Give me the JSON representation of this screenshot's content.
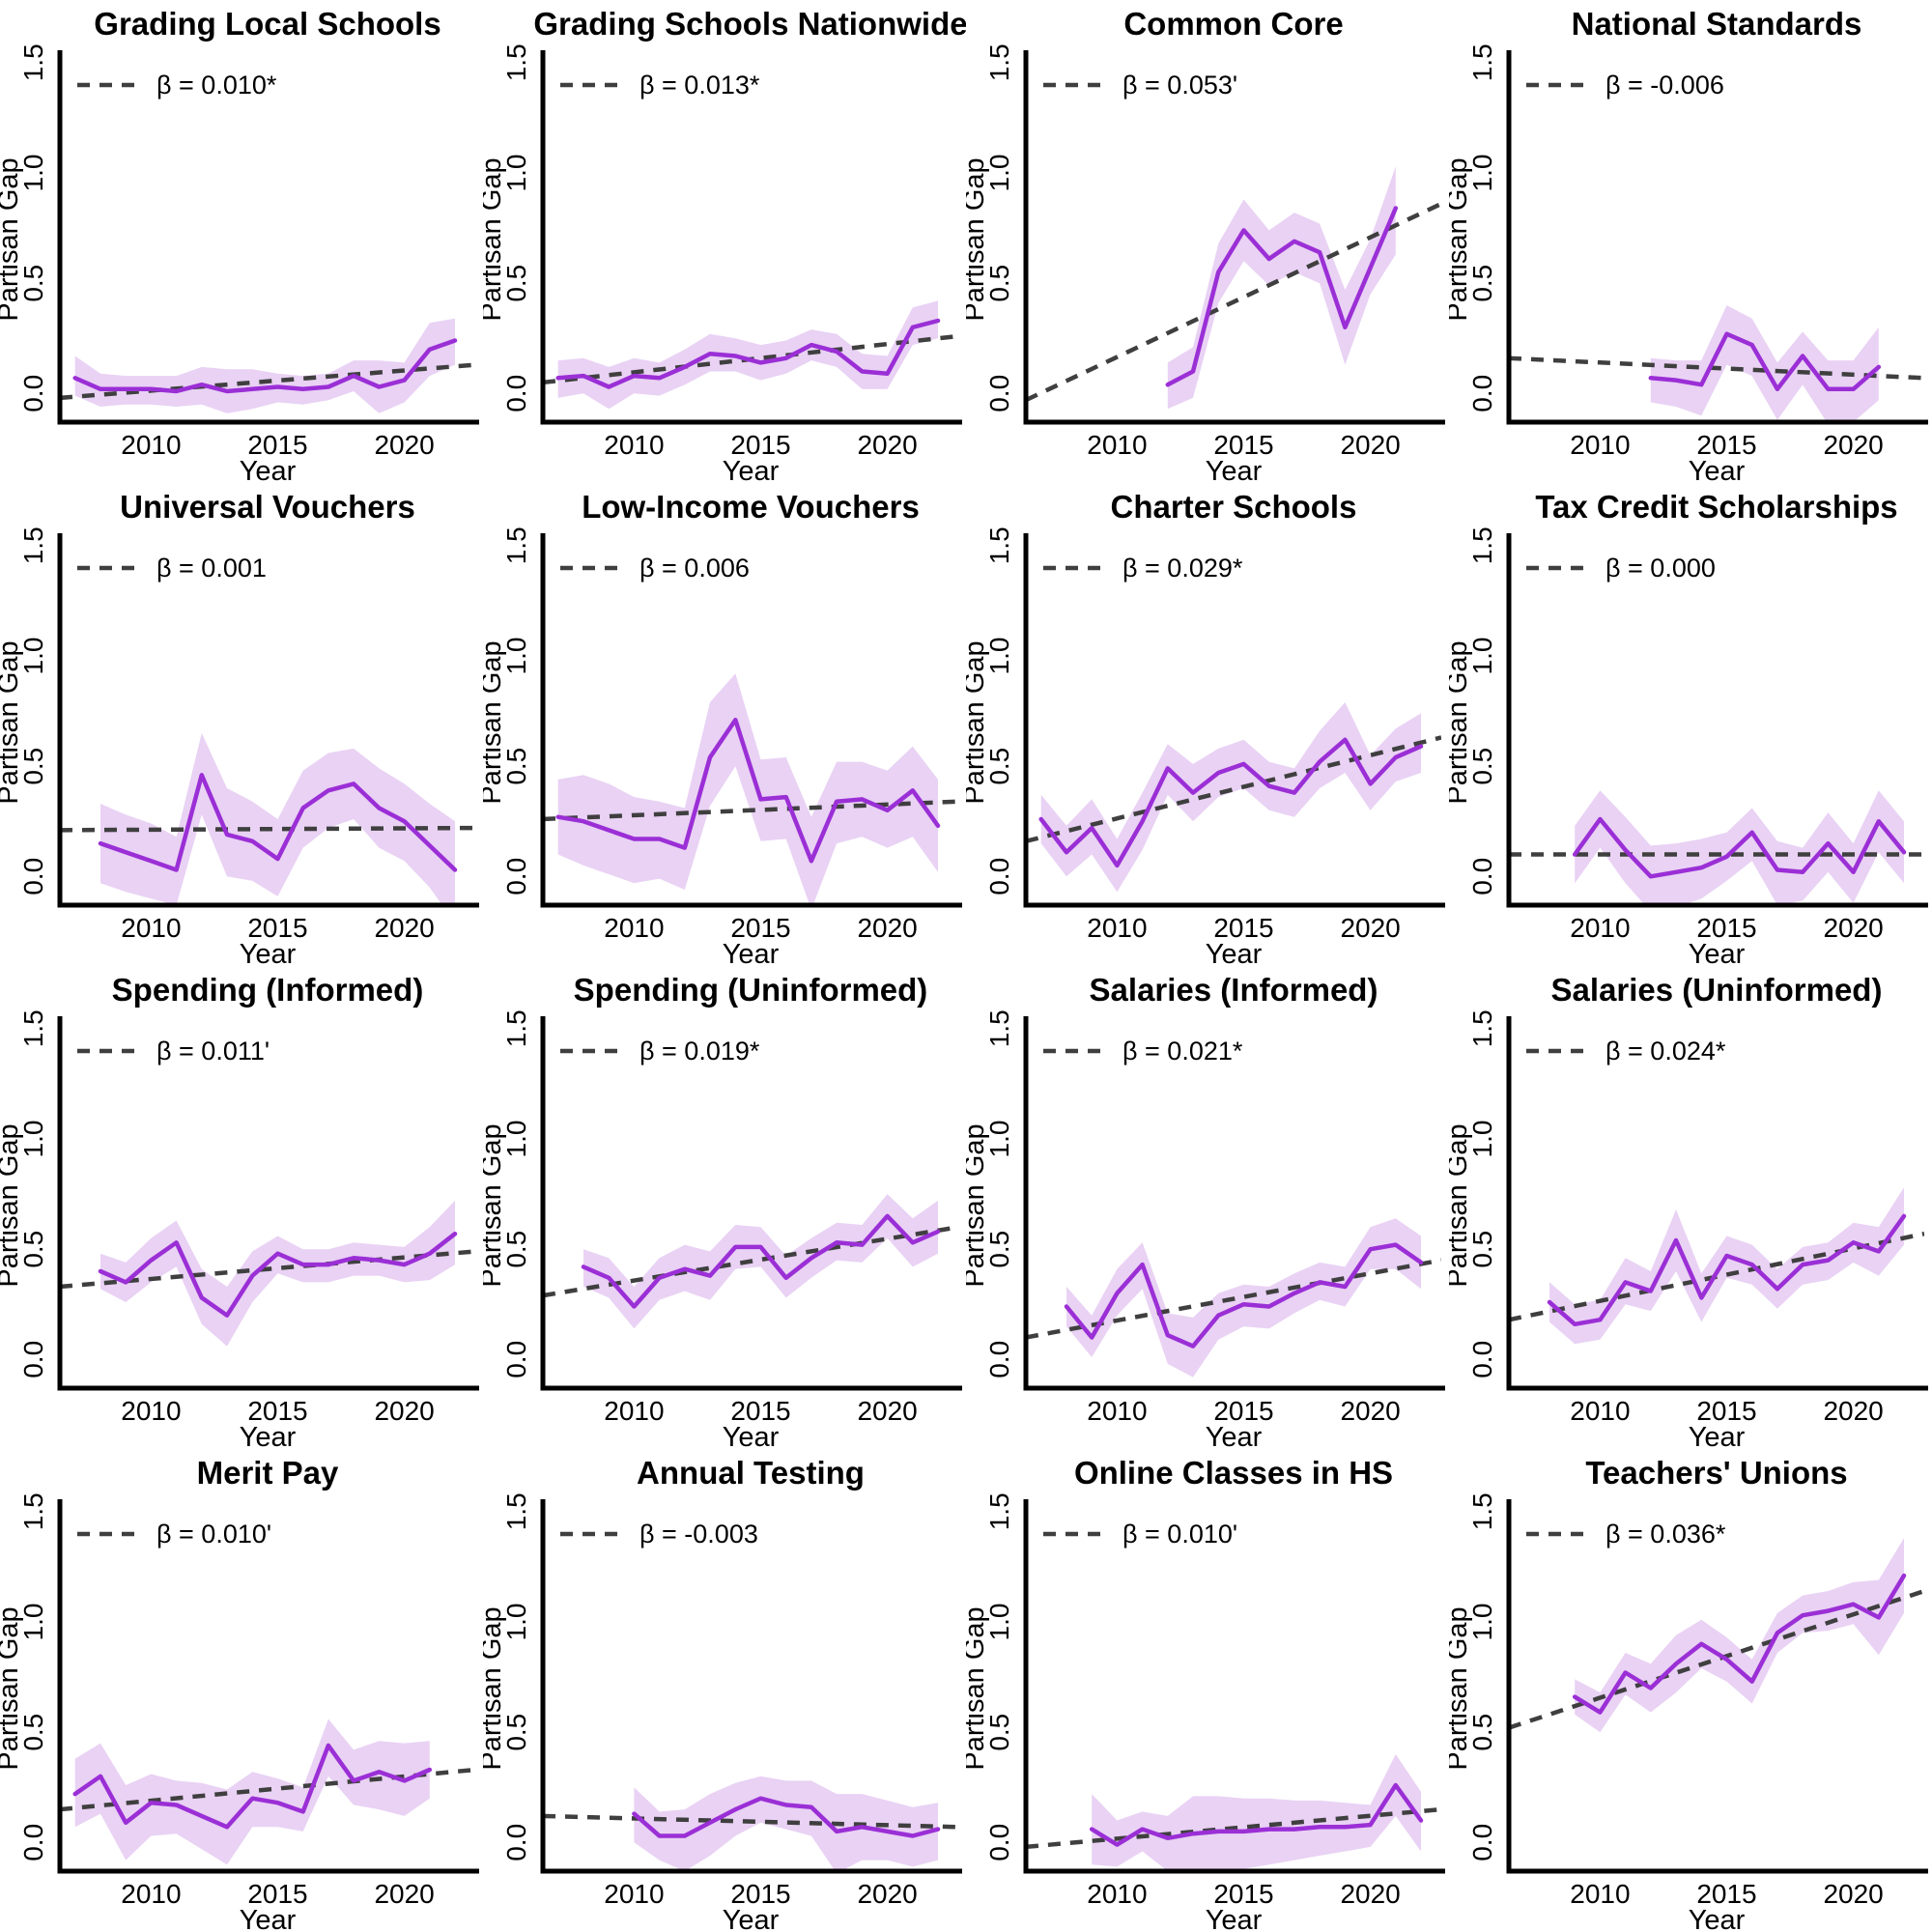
{
  "page": {
    "background": "#ffffff"
  },
  "colors": {
    "series_line": "#9B2FD6",
    "band_fill": "#9932CC",
    "band_opacity": 0.22,
    "trend_line": "#3F3F3F",
    "axis": "#000000"
  },
  "chart_axis": {
    "xlabel": "Year",
    "ylabel": "Partisan Gap",
    "xticks": [
      "2010",
      "2015",
      "2020"
    ],
    "xtick_values": [
      2010,
      2015,
      2020
    ],
    "yticks": [
      "0.0",
      "0.5",
      "1.0",
      "1.5"
    ],
    "ytick_values": [
      0,
      0.5,
      1.0,
      1.5
    ],
    "xlim": [
      2006.4,
      2022.8
    ],
    "ylim": [
      -0.13,
      1.53
    ],
    "grid": false,
    "legend_position": "top-left-inside"
  },
  "chart_data": [
    {
      "type": "line",
      "title": "Grading Local Schools",
      "beta_label": "β = 0.010*",
      "x": [
        2007,
        2008,
        2009,
        2010,
        2011,
        2012,
        2013,
        2014,
        2015,
        2016,
        2017,
        2018,
        2019,
        2020,
        2021,
        2022
      ],
      "values": [
        0.07,
        0.02,
        0.02,
        0.02,
        0.01,
        0.04,
        0.01,
        0.02,
        0.03,
        0.02,
        0.03,
        0.08,
        0.03,
        0.06,
        0.2,
        0.24
      ],
      "band_lower": [
        -0.01,
        -0.06,
        -0.05,
        -0.05,
        -0.06,
        -0.05,
        -0.09,
        -0.07,
        -0.04,
        -0.05,
        -0.03,
        0.01,
        -0.09,
        -0.04,
        0.08,
        0.13
      ],
      "band_upper": [
        0.17,
        0.09,
        0.08,
        0.08,
        0.08,
        0.12,
        0.11,
        0.11,
        0.09,
        0.08,
        0.09,
        0.15,
        0.15,
        0.14,
        0.32,
        0.34
      ],
      "trend_y": [
        -0.02,
        0.13
      ]
    },
    {
      "type": "line",
      "title": "Grading Schools Nationwide",
      "beta_label": "β = 0.013*",
      "x": [
        2007,
        2008,
        2009,
        2010,
        2011,
        2012,
        2013,
        2014,
        2015,
        2016,
        2017,
        2018,
        2019,
        2020,
        2021,
        2022
      ],
      "values": [
        0.07,
        0.08,
        0.03,
        0.08,
        0.07,
        0.12,
        0.18,
        0.17,
        0.14,
        0.16,
        0.22,
        0.19,
        0.1,
        0.09,
        0.3,
        0.33
      ],
      "band_lower": [
        -0.02,
        0.0,
        -0.07,
        0.0,
        -0.01,
        0.04,
        0.1,
        0.1,
        0.06,
        0.09,
        0.15,
        0.12,
        0.02,
        0.02,
        0.22,
        0.25
      ],
      "band_upper": [
        0.15,
        0.16,
        0.12,
        0.16,
        0.14,
        0.2,
        0.27,
        0.25,
        0.22,
        0.24,
        0.29,
        0.27,
        0.18,
        0.17,
        0.39,
        0.42
      ],
      "trend_y": [
        0.05,
        0.26
      ]
    },
    {
      "type": "line",
      "title": "Common Core",
      "beta_label": "β = 0.053'",
      "x": [
        2012,
        2013,
        2014,
        2015,
        2016,
        2017,
        2018,
        2019,
        2020,
        2021
      ],
      "values": [
        0.04,
        0.1,
        0.55,
        0.74,
        0.61,
        0.69,
        0.64,
        0.3,
        0.57,
        0.84
      ],
      "band_lower": [
        -0.07,
        -0.02,
        0.41,
        0.6,
        0.49,
        0.55,
        0.5,
        0.13,
        0.45,
        0.63
      ],
      "band_upper": [
        0.14,
        0.21,
        0.68,
        0.88,
        0.74,
        0.82,
        0.77,
        0.47,
        0.7,
        1.03
      ],
      "trend_y": [
        -0.03,
        0.86
      ]
    },
    {
      "type": "line",
      "title": "National Standards",
      "beta_label": "β = -0.006",
      "x": [
        2012,
        2013,
        2014,
        2015,
        2016,
        2017,
        2018,
        2019,
        2020,
        2021
      ],
      "values": [
        0.07,
        0.06,
        0.04,
        0.27,
        0.22,
        0.02,
        0.17,
        0.02,
        0.02,
        0.12
      ],
      "band_lower": [
        -0.04,
        -0.06,
        -0.1,
        0.13,
        0.08,
        -0.12,
        0.04,
        -0.14,
        -0.13,
        -0.03
      ],
      "band_upper": [
        0.16,
        0.15,
        0.15,
        0.4,
        0.34,
        0.14,
        0.28,
        0.15,
        0.15,
        0.3
      ],
      "trend_y": [
        0.16,
        0.07
      ]
    },
    {
      "type": "line",
      "title": "Universal Vouchers",
      "beta_label": "β = 0.001",
      "x": [
        2008,
        2009,
        2010,
        2011,
        2012,
        2013,
        2014,
        2015,
        2016,
        2017,
        2018,
        2019,
        2020,
        2021,
        2022
      ],
      "values": [
        0.15,
        0.11,
        0.07,
        0.03,
        0.46,
        0.19,
        0.16,
        0.08,
        0.31,
        0.39,
        0.42,
        0.31,
        0.25,
        0.14,
        0.03
      ],
      "band_lower": [
        -0.03,
        -0.07,
        -0.1,
        -0.13,
        0.28,
        0.0,
        -0.02,
        -0.09,
        0.13,
        0.22,
        0.26,
        0.13,
        0.07,
        -0.05,
        -0.21
      ],
      "band_upper": [
        0.33,
        0.28,
        0.24,
        0.18,
        0.65,
        0.4,
        0.34,
        0.26,
        0.48,
        0.56,
        0.58,
        0.49,
        0.42,
        0.33,
        0.25
      ],
      "trend_y": [
        0.21,
        0.22
      ]
    },
    {
      "type": "line",
      "title": "Low-Income Vouchers",
      "beta_label": "β = 0.006",
      "x": [
        2007,
        2008,
        2009,
        2010,
        2011,
        2012,
        2013,
        2014,
        2015,
        2016,
        2017,
        2018,
        2019,
        2020,
        2021,
        2022
      ],
      "values": [
        0.27,
        0.25,
        0.21,
        0.17,
        0.17,
        0.13,
        0.54,
        0.71,
        0.35,
        0.36,
        0.07,
        0.34,
        0.35,
        0.3,
        0.39,
        0.23
      ],
      "band_lower": [
        0.1,
        0.05,
        0.01,
        -0.03,
        -0.01,
        -0.06,
        0.32,
        0.5,
        0.16,
        0.17,
        -0.15,
        0.15,
        0.18,
        0.13,
        0.18,
        0.02
      ],
      "band_upper": [
        0.44,
        0.46,
        0.42,
        0.36,
        0.34,
        0.31,
        0.79,
        0.92,
        0.53,
        0.54,
        0.27,
        0.52,
        0.52,
        0.48,
        0.59,
        0.44
      ],
      "trend_y": [
        0.26,
        0.34
      ]
    },
    {
      "type": "line",
      "title": "Charter Schools",
      "beta_label": "β = 0.029*",
      "x": [
        2007,
        2008,
        2009,
        2010,
        2011,
        2012,
        2013,
        2014,
        2015,
        2016,
        2017,
        2018,
        2019,
        2020,
        2021,
        2022
      ],
      "values": [
        0.26,
        0.11,
        0.22,
        0.05,
        0.25,
        0.49,
        0.38,
        0.47,
        0.51,
        0.41,
        0.38,
        0.52,
        0.62,
        0.42,
        0.54,
        0.59
      ],
      "band_lower": [
        0.15,
        0.0,
        0.1,
        -0.07,
        0.12,
        0.37,
        0.25,
        0.36,
        0.4,
        0.3,
        0.27,
        0.4,
        0.47,
        0.3,
        0.43,
        0.47
      ],
      "band_upper": [
        0.37,
        0.23,
        0.35,
        0.17,
        0.38,
        0.6,
        0.51,
        0.58,
        0.62,
        0.52,
        0.49,
        0.66,
        0.79,
        0.55,
        0.67,
        0.74
      ],
      "trend_y": [
        0.16,
        0.63
      ]
    },
    {
      "type": "line",
      "title": "Tax Credit Scholarships",
      "beta_label": "β = 0.000",
      "x": [
        2009,
        2010,
        2011,
        2012,
        2013,
        2014,
        2015,
        2016,
        2017,
        2018,
        2019,
        2020,
        2021,
        2022
      ],
      "values": [
        0.1,
        0.26,
        0.12,
        0.0,
        0.02,
        0.04,
        0.09,
        0.2,
        0.03,
        0.02,
        0.15,
        0.02,
        0.25,
        0.11
      ],
      "band_lower": [
        -0.03,
        0.13,
        -0.03,
        -0.16,
        -0.14,
        -0.1,
        -0.02,
        0.07,
        -0.13,
        -0.11,
        0.02,
        -0.12,
        0.11,
        -0.03
      ],
      "band_upper": [
        0.23,
        0.39,
        0.27,
        0.14,
        0.15,
        0.17,
        0.2,
        0.31,
        0.16,
        0.13,
        0.29,
        0.15,
        0.39,
        0.25
      ],
      "trend_y": [
        0.1,
        0.1
      ]
    },
    {
      "type": "line",
      "title": "Spending (Informed)",
      "beta_label": "β = 0.011'",
      "x": [
        2008,
        2009,
        2010,
        2011,
        2012,
        2013,
        2014,
        2015,
        2016,
        2017,
        2018,
        2019,
        2020,
        2021,
        2022
      ],
      "values": [
        0.4,
        0.35,
        0.45,
        0.53,
        0.28,
        0.2,
        0.38,
        0.48,
        0.43,
        0.43,
        0.46,
        0.45,
        0.43,
        0.48,
        0.57
      ],
      "band_lower": [
        0.32,
        0.26,
        0.35,
        0.42,
        0.16,
        0.06,
        0.26,
        0.39,
        0.35,
        0.35,
        0.38,
        0.38,
        0.35,
        0.36,
        0.43
      ],
      "band_upper": [
        0.48,
        0.44,
        0.55,
        0.63,
        0.41,
        0.33,
        0.49,
        0.56,
        0.5,
        0.5,
        0.53,
        0.52,
        0.51,
        0.6,
        0.72
      ],
      "trend_y": [
        0.33,
        0.49
      ]
    },
    {
      "type": "line",
      "title": "Spending (Uninformed)",
      "beta_label": "β = 0.019*",
      "x": [
        2008,
        2009,
        2010,
        2011,
        2012,
        2013,
        2014,
        2015,
        2016,
        2017,
        2018,
        2019,
        2020,
        2021,
        2022
      ],
      "values": [
        0.42,
        0.37,
        0.24,
        0.37,
        0.41,
        0.38,
        0.51,
        0.51,
        0.37,
        0.46,
        0.53,
        0.52,
        0.65,
        0.53,
        0.58
      ],
      "band_lower": [
        0.33,
        0.28,
        0.14,
        0.27,
        0.31,
        0.27,
        0.41,
        0.42,
        0.28,
        0.37,
        0.45,
        0.44,
        0.55,
        0.42,
        0.48
      ],
      "band_upper": [
        0.5,
        0.46,
        0.33,
        0.46,
        0.52,
        0.49,
        0.61,
        0.6,
        0.47,
        0.55,
        0.62,
        0.61,
        0.75,
        0.64,
        0.72
      ],
      "trend_y": [
        0.29,
        0.6
      ]
    },
    {
      "type": "line",
      "title": "Salaries (Informed)",
      "beta_label": "β = 0.021*",
      "x": [
        2008,
        2009,
        2010,
        2011,
        2012,
        2013,
        2014,
        2015,
        2016,
        2017,
        2018,
        2019,
        2020,
        2021,
        2022
      ],
      "values": [
        0.24,
        0.1,
        0.3,
        0.43,
        0.11,
        0.06,
        0.2,
        0.25,
        0.24,
        0.3,
        0.35,
        0.33,
        0.5,
        0.52,
        0.44
      ],
      "band_lower": [
        0.15,
        0.01,
        0.2,
        0.32,
        -0.02,
        -0.08,
        0.09,
        0.15,
        0.14,
        0.21,
        0.27,
        0.24,
        0.41,
        0.41,
        0.32
      ],
      "band_upper": [
        0.33,
        0.2,
        0.41,
        0.53,
        0.21,
        0.19,
        0.3,
        0.34,
        0.33,
        0.39,
        0.44,
        0.42,
        0.6,
        0.64,
        0.56
      ],
      "trend_y": [
        0.1,
        0.45
      ]
    },
    {
      "type": "line",
      "title": "Salaries (Uninformed)",
      "beta_label": "β = 0.024*",
      "x": [
        2008,
        2009,
        2010,
        2011,
        2012,
        2013,
        2014,
        2015,
        2016,
        2017,
        2018,
        2019,
        2020,
        2021,
        2022
      ],
      "values": [
        0.26,
        0.16,
        0.18,
        0.35,
        0.31,
        0.54,
        0.28,
        0.47,
        0.43,
        0.32,
        0.43,
        0.45,
        0.53,
        0.49,
        0.65
      ],
      "band_lower": [
        0.17,
        0.07,
        0.09,
        0.25,
        0.22,
        0.4,
        0.17,
        0.37,
        0.34,
        0.23,
        0.34,
        0.36,
        0.44,
        0.38,
        0.52
      ],
      "band_upper": [
        0.35,
        0.25,
        0.27,
        0.46,
        0.4,
        0.68,
        0.39,
        0.56,
        0.52,
        0.41,
        0.51,
        0.53,
        0.62,
        0.6,
        0.78
      ],
      "trend_y": [
        0.18,
        0.57
      ]
    },
    {
      "type": "line",
      "title": "Merit Pay",
      "beta_label": "β = 0.010'",
      "x": [
        2007,
        2008,
        2009,
        2010,
        2011,
        2012,
        2013,
        2014,
        2015,
        2016,
        2017,
        2018,
        2019,
        2020,
        2021
      ],
      "values": [
        0.22,
        0.3,
        0.09,
        0.18,
        0.17,
        0.12,
        0.07,
        0.2,
        0.18,
        0.14,
        0.44,
        0.28,
        0.32,
        0.28,
        0.33
      ],
      "band_lower": [
        0.07,
        0.13,
        -0.08,
        0.03,
        0.04,
        -0.03,
        -0.1,
        0.07,
        0.07,
        0.05,
        0.3,
        0.17,
        0.15,
        0.12,
        0.2
      ],
      "band_upper": [
        0.38,
        0.45,
        0.26,
        0.31,
        0.28,
        0.27,
        0.24,
        0.32,
        0.29,
        0.25,
        0.56,
        0.42,
        0.46,
        0.45,
        0.46
      ],
      "trend_y": [
        0.15,
        0.33
      ]
    },
    {
      "type": "line",
      "title": "Annual Testing",
      "beta_label": "β = -0.003",
      "x": [
        2010,
        2011,
        2012,
        2013,
        2014,
        2015,
        2016,
        2017,
        2018,
        2019,
        2020,
        2021,
        2022
      ],
      "values": [
        0.13,
        0.03,
        0.03,
        0.09,
        0.15,
        0.2,
        0.17,
        0.16,
        0.05,
        0.07,
        0.05,
        0.03,
        0.06
      ],
      "band_lower": [
        0.0,
        -0.08,
        -0.13,
        -0.06,
        0.03,
        0.09,
        0.06,
        0.03,
        -0.14,
        -0.08,
        -0.08,
        -0.11,
        -0.08
      ],
      "band_upper": [
        0.25,
        0.14,
        0.15,
        0.22,
        0.27,
        0.3,
        0.28,
        0.28,
        0.22,
        0.22,
        0.19,
        0.16,
        0.18
      ],
      "trend_y": [
        0.12,
        0.07
      ]
    },
    {
      "type": "line",
      "title": "Online Classes in HS",
      "beta_label": "β = 0.010'",
      "x": [
        2009,
        2010,
        2011,
        2012,
        2013,
        2014,
        2015,
        2016,
        2017,
        2018,
        2019,
        2020,
        2021,
        2022
      ],
      "values": [
        0.06,
        -0.01,
        0.06,
        0.02,
        0.04,
        0.05,
        0.05,
        0.06,
        0.06,
        0.07,
        0.07,
        0.08,
        0.26,
        0.1
      ],
      "band_lower": [
        -0.1,
        -0.11,
        -0.04,
        -0.13,
        -0.16,
        -0.14,
        -0.12,
        -0.1,
        -0.08,
        -0.06,
        -0.04,
        -0.02,
        0.12,
        -0.04
      ],
      "band_upper": [
        0.22,
        0.1,
        0.14,
        0.12,
        0.21,
        0.21,
        0.2,
        0.2,
        0.19,
        0.19,
        0.18,
        0.17,
        0.4,
        0.23
      ],
      "trend_y": [
        -0.02,
        0.15
      ]
    },
    {
      "type": "line",
      "title": "Teachers' Unions",
      "beta_label": "β = 0.036*",
      "x": [
        2009,
        2010,
        2011,
        2012,
        2013,
        2014,
        2015,
        2016,
        2017,
        2018,
        2019,
        2020,
        2021,
        2022
      ],
      "values": [
        0.66,
        0.59,
        0.77,
        0.7,
        0.81,
        0.9,
        0.83,
        0.73,
        0.95,
        1.03,
        1.05,
        1.08,
        1.02,
        1.21
      ],
      "band_lower": [
        0.58,
        0.5,
        0.67,
        0.59,
        0.68,
        0.79,
        0.73,
        0.63,
        0.86,
        0.95,
        0.96,
        0.99,
        0.85,
        1.04
      ],
      "band_upper": [
        0.74,
        0.68,
        0.86,
        0.81,
        0.94,
        1.01,
        0.93,
        0.83,
        1.04,
        1.12,
        1.14,
        1.18,
        1.19,
        1.38
      ],
      "trend_y": [
        0.52,
        1.14
      ]
    }
  ]
}
